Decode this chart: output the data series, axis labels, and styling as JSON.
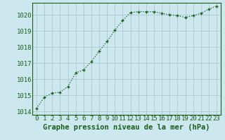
{
  "x": [
    0,
    1,
    2,
    3,
    4,
    5,
    6,
    7,
    8,
    9,
    10,
    11,
    12,
    13,
    14,
    15,
    16,
    17,
    18,
    19,
    20,
    21,
    22,
    23
  ],
  "y": [
    1014.2,
    1014.9,
    1015.15,
    1015.2,
    1015.55,
    1016.4,
    1016.6,
    1017.1,
    1017.75,
    1018.35,
    1019.05,
    1019.65,
    1020.15,
    1020.2,
    1020.2,
    1020.2,
    1020.1,
    1020.0,
    1019.95,
    1019.85,
    1019.95,
    1020.1,
    1020.35,
    1020.55
  ],
  "xlabel": "Graphe pression niveau de la mer (hPa)",
  "ylim": [
    1013.8,
    1020.75
  ],
  "yticks": [
    1014,
    1015,
    1016,
    1017,
    1018,
    1019,
    1020
  ],
  "xticks": [
    0,
    1,
    2,
    3,
    4,
    5,
    6,
    7,
    8,
    9,
    10,
    11,
    12,
    13,
    14,
    15,
    16,
    17,
    18,
    19,
    20,
    21,
    22,
    23
  ],
  "line_color": "#1a5c1a",
  "marker": "+",
  "bg_color": "#cce8ee",
  "grid_color": "#b0cdd4",
  "axis_color": "#1a5c1a",
  "xlabel_fontsize": 7.5,
  "tick_fontsize": 6.5
}
